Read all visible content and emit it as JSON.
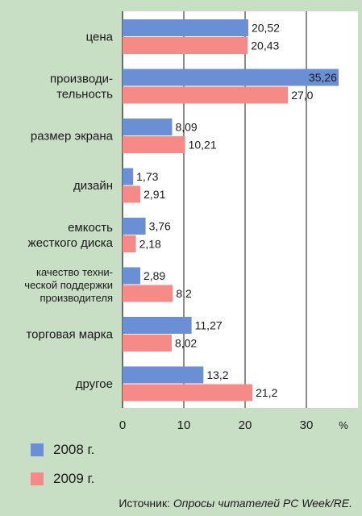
{
  "chart_data": {
    "type": "bar",
    "orientation": "horizontal",
    "categories": [
      [
        "цена"
      ],
      [
        "производи-",
        "тельность"
      ],
      [
        "размер экрана"
      ],
      [
        "дизайн"
      ],
      [
        "емкость",
        "жесткого диска"
      ],
      [
        "качество техни-",
        "ческой поддержки",
        "производителя"
      ],
      [
        "торговая марка"
      ],
      [
        "другое"
      ]
    ],
    "series": [
      {
        "name": "2008 г.",
        "color": "#6b8fd4",
        "values": [
          20.52,
          35.26,
          8.09,
          1.73,
          3.76,
          2.89,
          11.27,
          13.2
        ],
        "labels": [
          "20,52",
          "35,26",
          "8,09",
          "1,73",
          "3,76",
          "2,89",
          "11,27",
          "13,2"
        ]
      },
      {
        "name": "2009 г.",
        "color": "#f58a86",
        "values": [
          20.43,
          27.0,
          10.21,
          2.91,
          2.18,
          8.2,
          8.02,
          21.2
        ],
        "labels": [
          "20,43",
          "27,0",
          "10,21",
          "2,91",
          "2,18",
          "8,2",
          "8,02",
          "21,2"
        ]
      }
    ],
    "xlim": [
      0,
      37
    ],
    "xticks": [
      0,
      10,
      20,
      30
    ],
    "xtick_labels": [
      "0",
      "10",
      "20",
      "30"
    ],
    "unit": "%",
    "grid": true,
    "legend_position": "bottom-left"
  },
  "legend": {
    "items": [
      {
        "label": "2008 г.",
        "color": "#6b8fd4"
      },
      {
        "label": "2009 г.",
        "color": "#f58a86"
      }
    ]
  },
  "source": {
    "prefix": "Источник: ",
    "body": "Опросы читателей PC Week/RE."
  }
}
